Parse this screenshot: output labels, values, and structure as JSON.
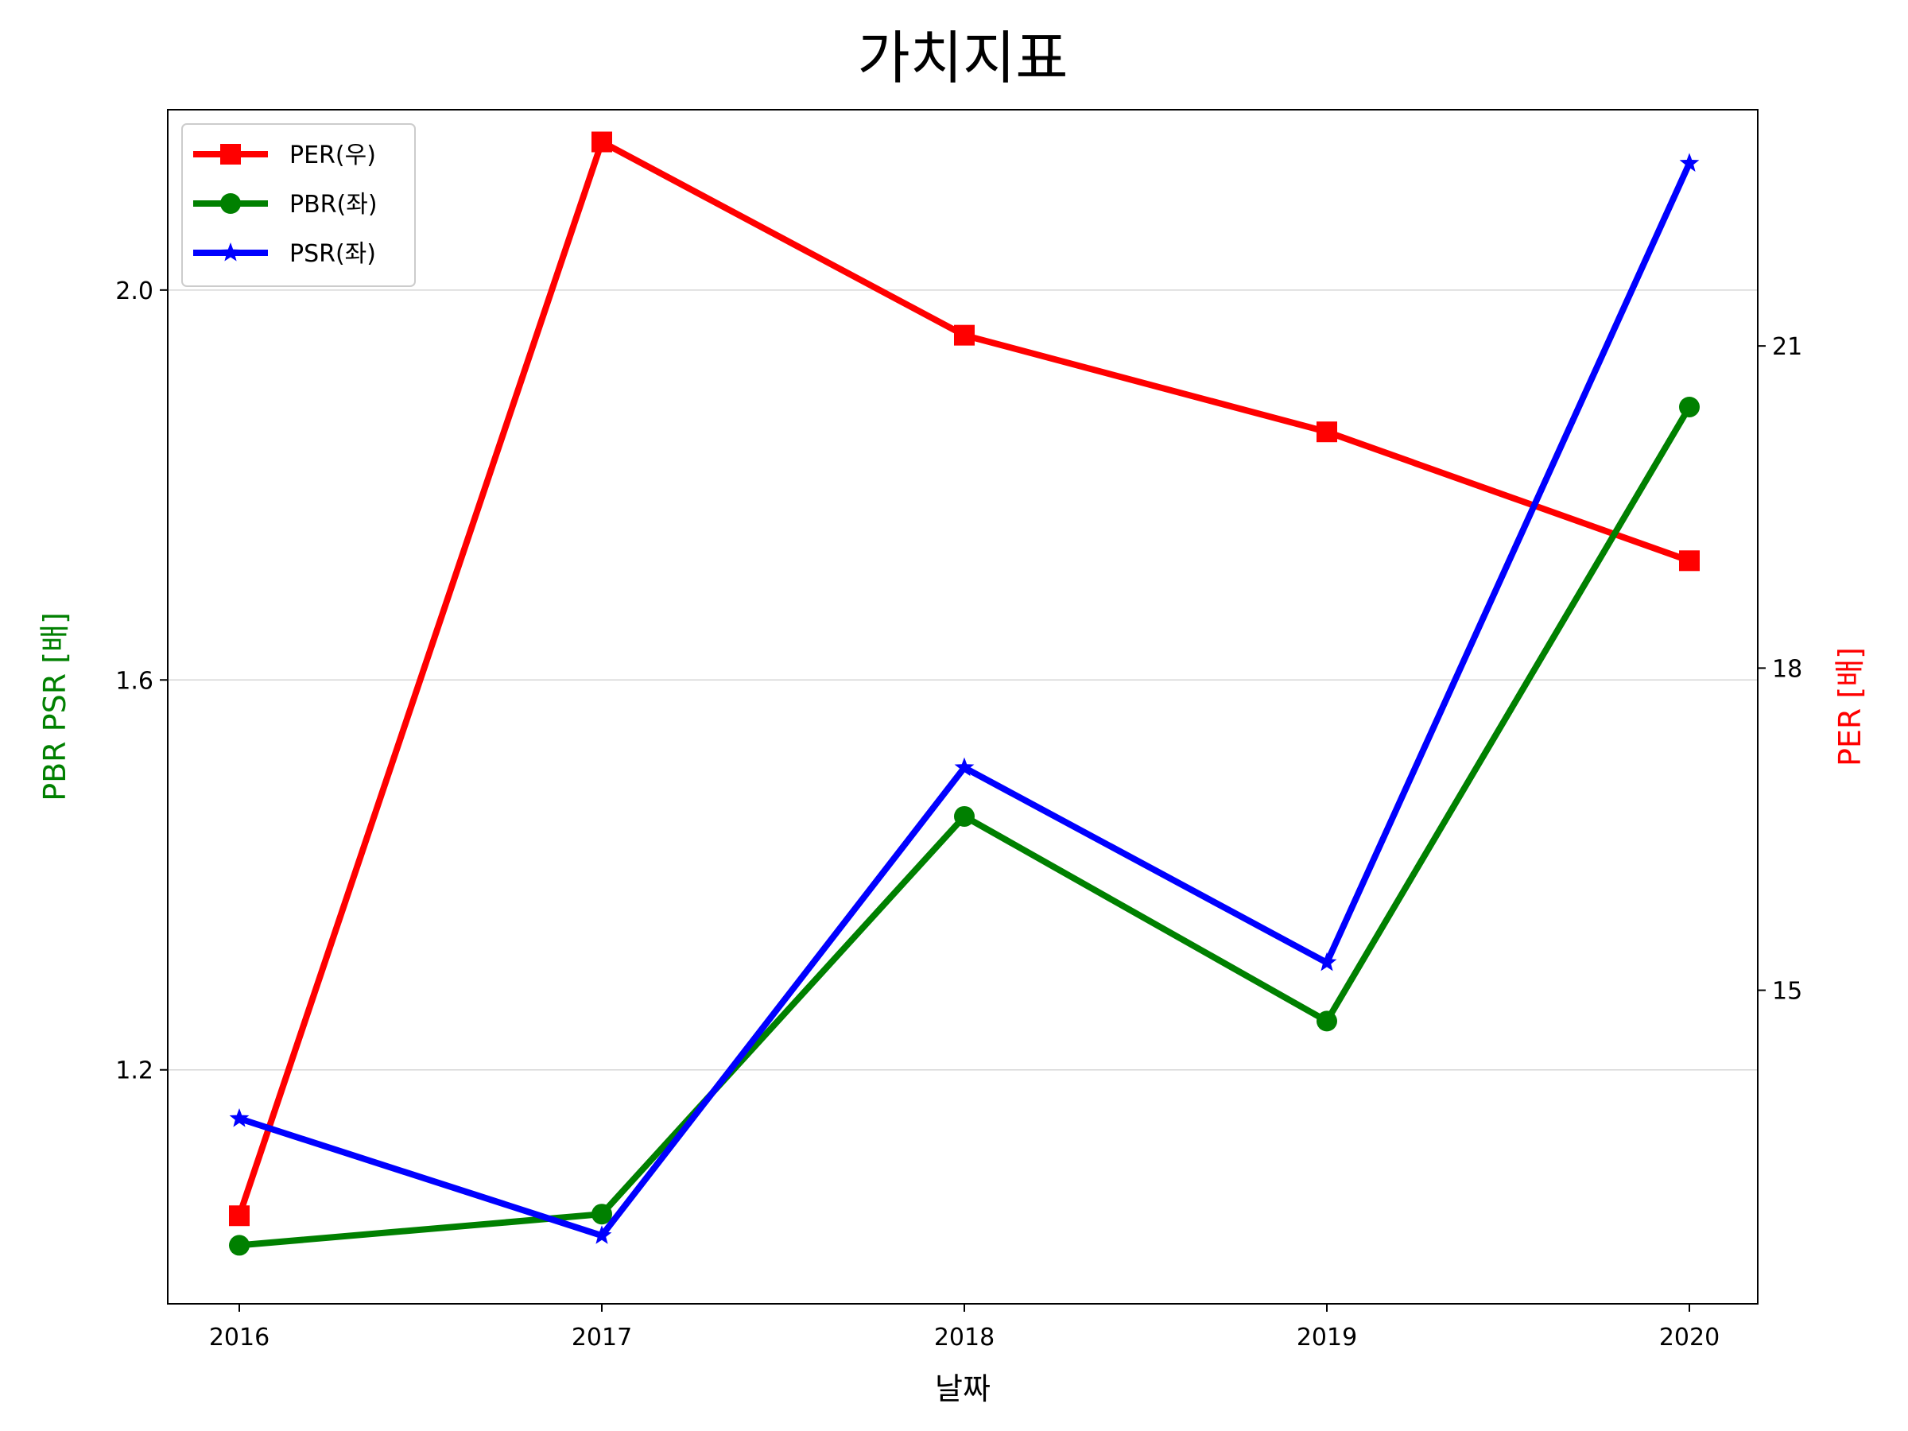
{
  "chart_data": {
    "type": "line",
    "title": "가치지표",
    "xlabel": "날짜",
    "ylabel_left": "PBR PSR [배]",
    "ylabel_right": "PER [배]",
    "ylabel_left_color": "#008000",
    "ylabel_right_color": "#ff0000",
    "categories": [
      "2016",
      "2017",
      "2018",
      "2019",
      "2020"
    ],
    "left_axis": {
      "ylim": [
        0.96,
        2.185
      ],
      "ticks": [
        1.2,
        1.6,
        2.0
      ],
      "tick_labels": [
        "1.2",
        "1.6",
        "2.0"
      ]
    },
    "right_axis": {
      "ylim": [
        12.08,
        23.2
      ],
      "ticks": [
        15,
        18,
        21
      ],
      "tick_labels": [
        "15",
        "18",
        "21"
      ]
    },
    "grid": "horizontal-left",
    "legend_position": "top-left",
    "series": [
      {
        "name": "PER(우)",
        "axis": "right",
        "color": "#ff0000",
        "marker": "square",
        "values": [
          12.9,
          22.9,
          21.1,
          20.2,
          19.0
        ]
      },
      {
        "name": "PBR(좌)",
        "axis": "left",
        "color": "#008000",
        "marker": "circle",
        "values": [
          1.02,
          1.052,
          1.46,
          1.25,
          1.88
        ]
      },
      {
        "name": "PSR(좌)",
        "axis": "left",
        "color": "#0000ff",
        "marker": "star",
        "values": [
          1.15,
          1.03,
          1.51,
          1.31,
          2.13
        ]
      }
    ]
  }
}
